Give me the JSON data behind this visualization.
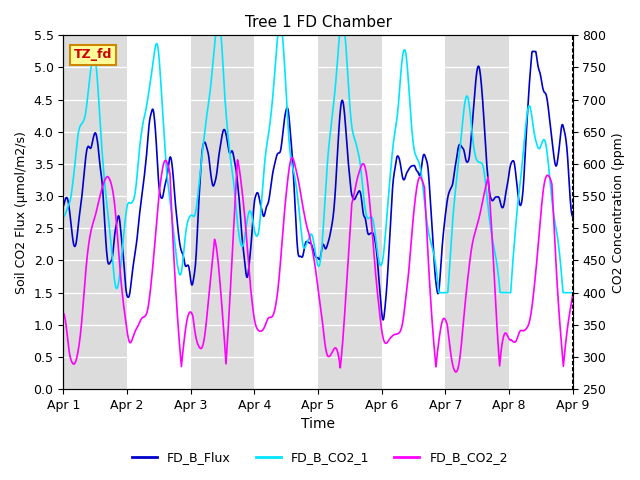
{
  "title": "Tree 1 FD Chamber",
  "xlabel": "Time",
  "ylabel_left": "Soil CO2 Flux (μmol/m2/s)",
  "ylabel_right": "CO2 Concentration (ppm)",
  "ylim_left": [
    0.0,
    5.5
  ],
  "ylim_right": [
    250,
    800
  ],
  "yticks_left": [
    0.0,
    0.5,
    1.0,
    1.5,
    2.0,
    2.5,
    3.0,
    3.5,
    4.0,
    4.5,
    5.0,
    5.5
  ],
  "yticks_right": [
    250,
    300,
    350,
    400,
    450,
    500,
    550,
    600,
    650,
    700,
    750,
    800
  ],
  "xtick_labels": [
    "Apr 1",
    "Apr 2",
    "Apr 3",
    "Apr 4",
    "Apr 5",
    "Apr 6",
    "Apr 7",
    "Apr 8",
    "Apr 9"
  ],
  "xtick_positions": [
    0,
    1,
    2,
    3,
    4,
    5,
    6,
    7,
    8
  ],
  "legend_labels": [
    "FD_B_Flux",
    "FD_B_CO2_1",
    "FD_B_CO2_2"
  ],
  "legend_colors": [
    "#0000CD",
    "#00E5FF",
    "#FF00FF"
  ],
  "tag_label": "TZ_fd",
  "tag_text_color": "#CC0000",
  "tag_bg_color": "#FFFF99",
  "tag_border_color": "#CC8800",
  "flux_color": "#0000CD",
  "co2_1_color": "#00E5FF",
  "co2_2_color": "#FF00FF",
  "bg_band_color": "#DCDCDC",
  "bg_white_color": "#FFFFFF",
  "line_width": 1.2,
  "n_points": 1200
}
